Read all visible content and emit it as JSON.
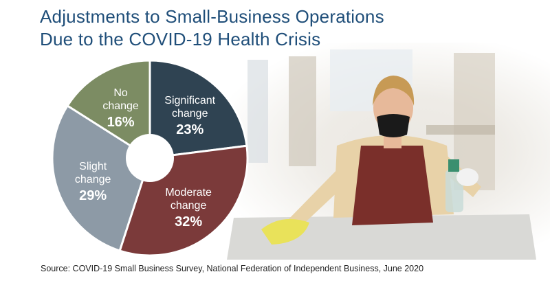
{
  "title_line1": "Adjustments to Small-Business Operations",
  "title_line2": "Due to the COVID-19 Health Crisis",
  "source": "Source: COVID-19 Small Business Survey, National Federation of Independent Business, June 2020",
  "chart_data": {
    "type": "pie",
    "style": "donut",
    "legend": "none (labels on slices)",
    "slices": [
      {
        "label_lines": [
          "Significant",
          "change"
        ],
        "value": 23,
        "value_label": "23%",
        "color": "#2f4352"
      },
      {
        "label_lines": [
          "Moderate",
          "change"
        ],
        "value": 32,
        "value_label": "32%",
        "color": "#7b3a3a"
      },
      {
        "label_lines": [
          "Slight",
          "change"
        ],
        "value": 29,
        "value_label": "29%",
        "color": "#8d9aa6"
      },
      {
        "label_lines": [
          "No",
          "change"
        ],
        "value": 16,
        "value_label": "16%",
        "color": "#7c8c63"
      }
    ]
  },
  "photo": {
    "icon": "person-cleaning-counter-photo",
    "colors": {
      "apron": "#7a2f2a",
      "shirt": "#e8d2a8",
      "mask": "#1a1a1a",
      "glove": "#f2f2f2",
      "cloth": "#e9e25a",
      "hair": "#c79a55",
      "skin": "#e7b99a"
    }
  }
}
